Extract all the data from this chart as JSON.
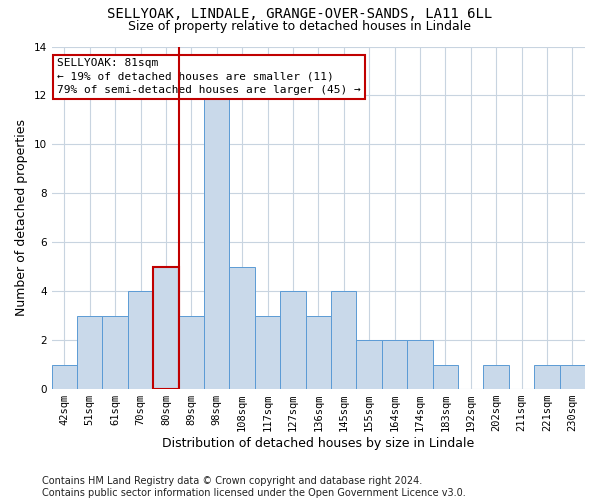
{
  "title_line1": "SELLYOAK, LINDALE, GRANGE-OVER-SANDS, LA11 6LL",
  "title_line2": "Size of property relative to detached houses in Lindale",
  "xlabel": "Distribution of detached houses by size in Lindale",
  "ylabel": "Number of detached properties",
  "categories": [
    "42sqm",
    "51sqm",
    "61sqm",
    "70sqm",
    "80sqm",
    "89sqm",
    "98sqm",
    "108sqm",
    "117sqm",
    "127sqm",
    "136sqm",
    "145sqm",
    "155sqm",
    "164sqm",
    "174sqm",
    "183sqm",
    "192sqm",
    "202sqm",
    "211sqm",
    "221sqm",
    "230sqm"
  ],
  "values": [
    1,
    3,
    3,
    4,
    5,
    3,
    12,
    5,
    3,
    4,
    3,
    4,
    2,
    2,
    2,
    1,
    0,
    1,
    0,
    1,
    1
  ],
  "bar_color": "#c9d9ea",
  "bar_edge_color": "#5b9bd5",
  "highlight_index": 4,
  "vline_color": "#c00000",
  "annotation_text": "SELLYOAK: 81sqm\n← 19% of detached houses are smaller (11)\n79% of semi-detached houses are larger (45) →",
  "annotation_box_color": "white",
  "annotation_box_edge_color": "#c00000",
  "ylim": [
    0,
    14
  ],
  "yticks": [
    0,
    2,
    4,
    6,
    8,
    10,
    12,
    14
  ],
  "grid_color": "#c8d4e0",
  "footnote": "Contains HM Land Registry data © Crown copyright and database right 2024.\nContains public sector information licensed under the Open Government Licence v3.0.",
  "title_fontsize": 10,
  "subtitle_fontsize": 9,
  "ylabel_fontsize": 9,
  "xlabel_fontsize": 9,
  "tick_fontsize": 7.5,
  "annotation_fontsize": 8,
  "footnote_fontsize": 7
}
